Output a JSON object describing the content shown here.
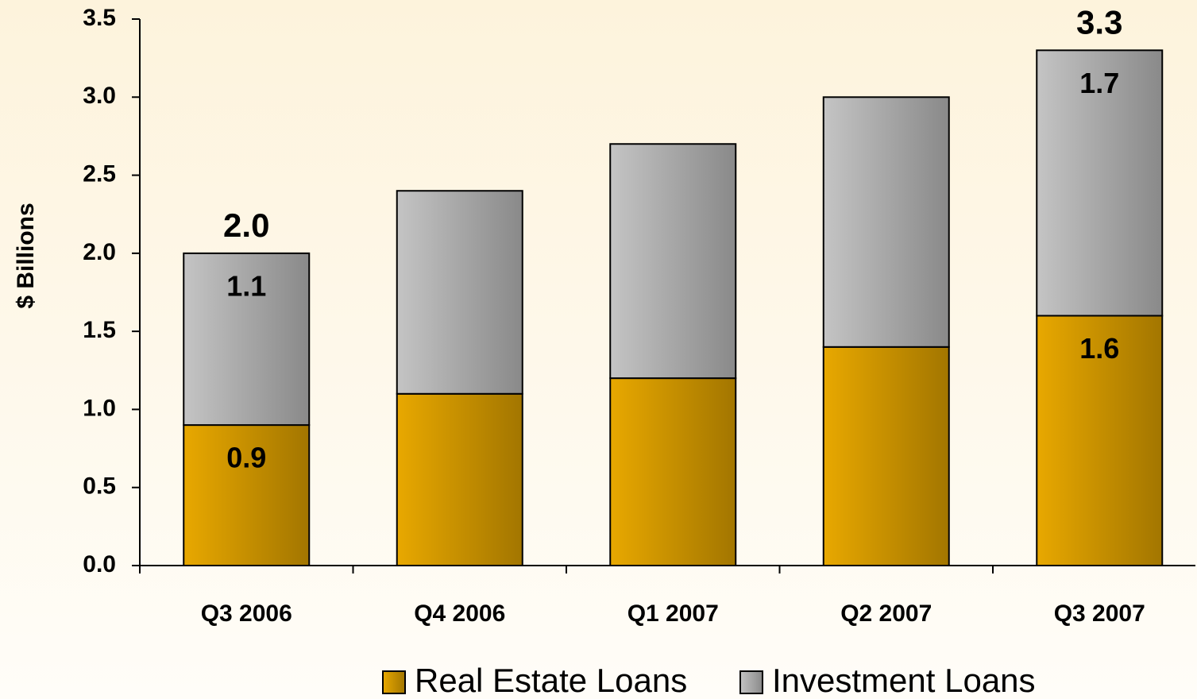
{
  "chart_data": {
    "type": "stacked_bar",
    "y_label": "$ Billions",
    "categories": [
      "Q3 2006",
      "Q4 2006",
      "Q1 2007",
      "Q2 2007",
      "Q3 2007"
    ],
    "series": [
      {
        "name": "Real Estate Loans",
        "color": "#e8a800",
        "values": [
          0.9,
          1.1,
          1.2,
          1.4,
          1.6
        ],
        "value_labels": [
          "0.9",
          null,
          null,
          null,
          "1.6"
        ]
      },
      {
        "name": "Investment Loans",
        "color": "#c4c4c4",
        "values": [
          1.1,
          1.3,
          1.5,
          1.6,
          1.7
        ],
        "value_labels": [
          "1.1",
          null,
          null,
          null,
          "1.7"
        ]
      }
    ],
    "total_labels": [
      "2.0",
      null,
      null,
      null,
      "3.3"
    ],
    "ylim": [
      0,
      3.5
    ],
    "yticks": [
      {
        "value": 0,
        "label": "0.0"
      },
      0.5,
      {
        "value": 1,
        "label": "1.0"
      },
      1.5,
      {
        "value": 2,
        "label": "2.0"
      },
      2.5,
      {
        "value": 3,
        "label": "3.0"
      },
      3.5
    ],
    "grid": false,
    "legend": "bottom"
  }
}
